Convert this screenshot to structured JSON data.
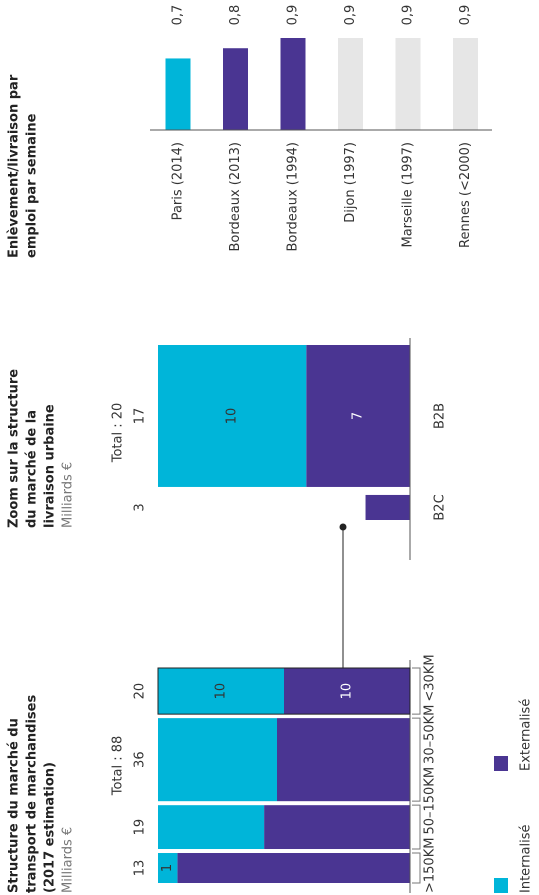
{
  "chart_data": [
    {
      "type": "mekko",
      "title": [
        "Structure du marché du",
        "transport de marchandises",
        "(2017 estimation)"
      ],
      "subtitle": "Milliards €",
      "total_label": "Total : 88",
      "categories": [
        ">150KM",
        "50–150KM",
        "30–50KM",
        "<30KM"
      ],
      "totals": [
        13,
        19,
        36,
        20
      ],
      "series": [
        {
          "name": "Internalisé",
          "color": "#00b5d9",
          "values": [
            1,
            8,
            17,
            10
          ],
          "value_labels": [
            "1",
            null,
            null,
            "10"
          ]
        },
        {
          "name": "Externalisé",
          "color": "#4a3592",
          "values": [
            12,
            11,
            19,
            10
          ],
          "value_labels": [
            null,
            null,
            null,
            "10"
          ]
        }
      ],
      "legend": true
    },
    {
      "type": "stacked_bar",
      "title": [
        "Zoom sur la structure",
        "du marché de la",
        "livraison urbaine"
      ],
      "subtitle": "Milliards €",
      "total_label": "Total : 20",
      "categories": [
        "B2C",
        "B2B"
      ],
      "totals": [
        3,
        17
      ],
      "series": [
        {
          "color": "#00b5d9",
          "values": [
            null,
            10
          ],
          "value_labels": [
            null,
            "10"
          ]
        },
        {
          "color": "#4a3592",
          "values": [
            3,
            7
          ],
          "value_labels": [
            null,
            "7"
          ]
        }
      ]
    },
    {
      "type": "bar",
      "title": [
        "Enlèvement/livraison par",
        "emploi par semaine"
      ],
      "categories": [
        "Paris (2014)",
        "Bordeaux (2013)",
        "Bordeaux (1994)",
        "Dijon (1997)",
        "Marseille (1997)",
        "Rennes (<2000)"
      ],
      "values": [
        0.7,
        0.8,
        0.9,
        0.9,
        0.9,
        0.9
      ],
      "value_labels": [
        "0,7",
        "0,8",
        "0,9",
        "0,9",
        "0,9",
        "0,9"
      ],
      "colors": [
        "#00b5d9",
        "#4a3592",
        "#4a3592",
        "#e6e6e6",
        "#e6e6e6",
        "#e6e6e6"
      ],
      "ylim": [
        0,
        0.9
      ]
    }
  ]
}
